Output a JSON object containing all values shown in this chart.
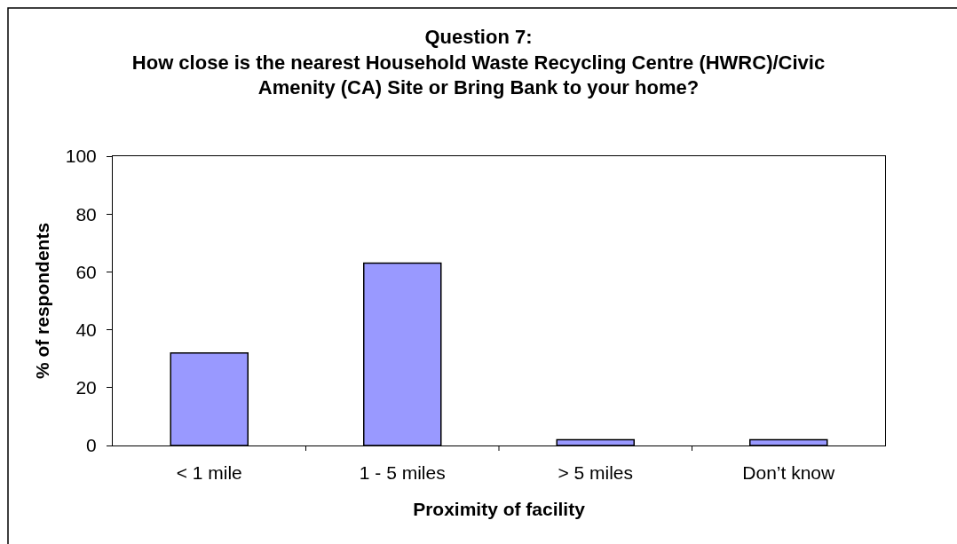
{
  "chart_data": {
    "type": "bar",
    "title": "Question 7:\nHow close is the nearest Household Waste Recycling Centre (HWRC)/Civic\nAmenity (CA) Site or Bring Bank to your home?",
    "xlabel": "Proximity of facility",
    "ylabel": "% of respondents",
    "categories": [
      "< 1 mile",
      "1 - 5 miles",
      "> 5 miles",
      "Don’t know"
    ],
    "values": [
      32,
      63,
      2,
      2
    ],
    "color": "#9999ff",
    "ylim": [
      0,
      100
    ],
    "yticks": [
      0,
      20,
      40,
      60,
      80,
      100
    ],
    "grid": false
  }
}
